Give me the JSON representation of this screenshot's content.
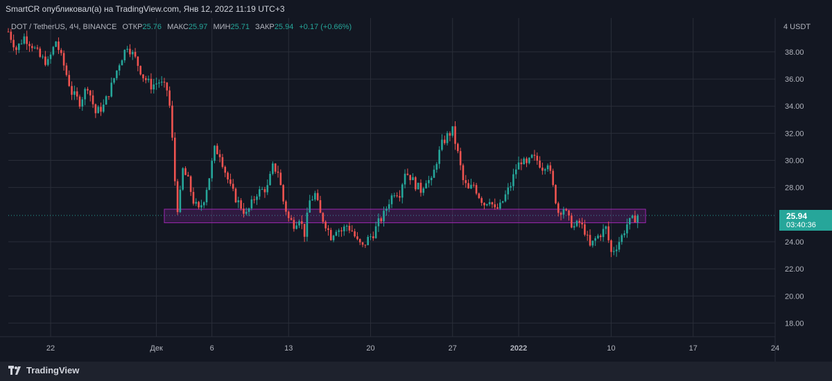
{
  "header": {
    "published_text": "SmartCR опубликовал(а) на TradingView.com, Янв 12, 2022 11:19 UTC+3"
  },
  "legend": {
    "symbol": "DOT / TetherUS, 4Ч, BINANCE",
    "open_label": "ОТКР",
    "open": "25.76",
    "high_label": "МАКС",
    "high": "25.97",
    "low_label": "МИН",
    "low": "25.71",
    "close_label": "ЗАКР",
    "close": "25.94",
    "change": "+0.17 (+0.66%)"
  },
  "axis": {
    "currency_label": "4 USDT"
  },
  "price_label": {
    "price": "25.94",
    "countdown": "03:40:36"
  },
  "footer": {
    "brand": "TradingView"
  },
  "colors": {
    "background": "#131722",
    "up": "#26a69a",
    "down": "#ef5350",
    "zone": "#9c27b0",
    "grid": "#2a2e39"
  },
  "chart_data": {
    "type": "candlestick",
    "title": "",
    "ylim": [
      17,
      40.5
    ],
    "y_ticks": [
      "38.00",
      "36.00",
      "34.00",
      "32.00",
      "30.00",
      "28.00",
      "24.00",
      "22.00",
      "20.00",
      "18.00"
    ],
    "x_ticks": [
      "22",
      "Дек",
      "6",
      "13",
      "20",
      "27",
      "2022",
      "10",
      "17",
      "24"
    ],
    "grid": true,
    "current_price": 25.94,
    "support_zone": {
      "low": 25.4,
      "high": 26.4
    },
    "close_path": [
      [
        0,
        39.5
      ],
      [
        3,
        38.2
      ],
      [
        6,
        39.1
      ],
      [
        9,
        38.5
      ],
      [
        12,
        37.6
      ],
      [
        15,
        37.2
      ],
      [
        18,
        38.8
      ],
      [
        21,
        37.0
      ],
      [
        24,
        35.0
      ],
      [
        27,
        34.3
      ],
      [
        30,
        35.5
      ],
      [
        33,
        33.5
      ],
      [
        36,
        34.0
      ],
      [
        39,
        35.5
      ],
      [
        42,
        37.2
      ],
      [
        45,
        38.5
      ],
      [
        48,
        37.5
      ],
      [
        51,
        36.2
      ],
      [
        54,
        35.5
      ],
      [
        57,
        35.8
      ],
      [
        60,
        35.2
      ],
      [
        61,
        34.0
      ],
      [
        62,
        31.5
      ],
      [
        63,
        28.5
      ],
      [
        64,
        26.5
      ],
      [
        65,
        27.5
      ],
      [
        66,
        29.3
      ],
      [
        68,
        28.5
      ],
      [
        70,
        27.0
      ],
      [
        72,
        26.3
      ],
      [
        74,
        27.2
      ],
      [
        76,
        28.8
      ],
      [
        78,
        30.8
      ],
      [
        80,
        30.5
      ],
      [
        82,
        29.2
      ],
      [
        84,
        28.0
      ],
      [
        86,
        27.2
      ],
      [
        88,
        26.6
      ],
      [
        90,
        26.0
      ],
      [
        92,
        26.8
      ],
      [
        94,
        27.6
      ],
      [
        96,
        27.8
      ],
      [
        98,
        28.0
      ],
      [
        100,
        29.5
      ],
      [
        102,
        29.2
      ],
      [
        104,
        27.0
      ],
      [
        106,
        25.7
      ],
      [
        108,
        25.3
      ],
      [
        110,
        25.8
      ],
      [
        112,
        24.6
      ],
      [
        114,
        27.0
      ],
      [
        116,
        27.5
      ],
      [
        118,
        26.0
      ],
      [
        120,
        25.3
      ],
      [
        122,
        24.4
      ],
      [
        124,
        25.0
      ],
      [
        126,
        24.8
      ],
      [
        128,
        25.2
      ],
      [
        130,
        24.8
      ],
      [
        132,
        24.0
      ],
      [
        134,
        23.6
      ],
      [
        136,
        24.2
      ],
      [
        138,
        24.6
      ],
      [
        140,
        25.4
      ],
      [
        142,
        26.0
      ],
      [
        144,
        27.0
      ],
      [
        146,
        27.7
      ],
      [
        148,
        27.6
      ],
      [
        150,
        29.2
      ],
      [
        152,
        28.8
      ],
      [
        154,
        28.2
      ],
      [
        156,
        27.8
      ],
      [
        158,
        28.6
      ],
      [
        160,
        28.4
      ],
      [
        162,
        30.0
      ],
      [
        164,
        31.2
      ],
      [
        166,
        31.8
      ],
      [
        168,
        32.2
      ],
      [
        170,
        30.5
      ],
      [
        172,
        28.5
      ],
      [
        174,
        27.8
      ],
      [
        176,
        28.2
      ],
      [
        178,
        27.4
      ],
      [
        180,
        26.8
      ],
      [
        182,
        27.2
      ],
      [
        184,
        26.3
      ],
      [
        186,
        26.6
      ],
      [
        188,
        27.4
      ],
      [
        190,
        28.2
      ],
      [
        192,
        29.4
      ],
      [
        194,
        30.0
      ],
      [
        196,
        29.6
      ],
      [
        198,
        30.2
      ],
      [
        200,
        30.0
      ],
      [
        202,
        29.5
      ],
      [
        204,
        29.9
      ],
      [
        206,
        28.0
      ],
      [
        208,
        26.2
      ],
      [
        210,
        26.5
      ],
      [
        212,
        25.6
      ],
      [
        214,
        25.1
      ],
      [
        216,
        25.4
      ],
      [
        218,
        24.8
      ],
      [
        220,
        23.6
      ],
      [
        222,
        24.2
      ],
      [
        224,
        24.6
      ],
      [
        226,
        25.0
      ],
      [
        228,
        23.2
      ],
      [
        230,
        23.7
      ],
      [
        232,
        24.4
      ],
      [
        234,
        25.3
      ],
      [
        236,
        25.6
      ],
      [
        238,
        25.94
      ]
    ]
  }
}
